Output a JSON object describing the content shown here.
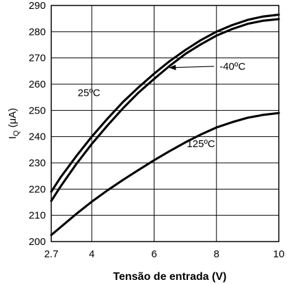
{
  "chart_data": {
    "type": "line",
    "xlabel": "Tensão de entrada (V)",
    "ylabel": {
      "main": "I",
      "sub": "Q",
      "unit": " (μA)"
    },
    "xlim": [
      2.7,
      10
    ],
    "ylim": [
      200,
      290
    ],
    "x_ticks": [
      2.7,
      4,
      6,
      8,
      10
    ],
    "x_tick_labels": [
      "2.7",
      "4",
      "6",
      "8",
      "10"
    ],
    "y_ticks": [
      200,
      210,
      220,
      230,
      240,
      250,
      260,
      270,
      280,
      290
    ],
    "y_tick_labels": [
      "200",
      "210",
      "220",
      "230",
      "240",
      "250",
      "260",
      "270",
      "280",
      "290"
    ],
    "grid": true,
    "series": [
      {
        "name": "25ºC",
        "x": [
          2.7,
          3.0,
          3.5,
          4.0,
          4.5,
          5.0,
          5.5,
          6.0,
          6.5,
          7.0,
          7.5,
          8.0,
          8.5,
          9.0,
          9.5,
          10.0
        ],
        "y": [
          219.0,
          224.5,
          232.5,
          240.0,
          246.8,
          253.2,
          258.8,
          264.0,
          268.8,
          273.0,
          276.8,
          280.0,
          282.5,
          284.5,
          285.8,
          286.5
        ]
      },
      {
        "name": "-40ºC",
        "x": [
          2.7,
          3.0,
          3.5,
          4.0,
          4.5,
          5.0,
          5.5,
          6.0,
          6.5,
          7.0,
          7.5,
          8.0,
          8.5,
          9.0,
          9.5,
          10.0
        ],
        "y": [
          215.5,
          221.0,
          229.5,
          237.2,
          244.2,
          250.8,
          256.8,
          262.0,
          267.0,
          271.5,
          275.2,
          278.5,
          281.0,
          283.0,
          284.2,
          284.8
        ]
      },
      {
        "name": "125ºC",
        "x": [
          2.7,
          3.0,
          3.5,
          4.0,
          4.5,
          5.0,
          5.5,
          6.0,
          6.5,
          7.0,
          7.5,
          8.0,
          8.5,
          9.0,
          9.5,
          10.0
        ],
        "y": [
          202.5,
          205.5,
          210.5,
          215.2,
          219.5,
          223.5,
          227.3,
          231.0,
          234.5,
          237.8,
          240.8,
          243.5,
          245.5,
          247.2,
          248.3,
          249.0
        ]
      }
    ],
    "annotations": [
      {
        "text": "25ºC",
        "x": 3.55,
        "y": 255.5
      },
      {
        "text": "-40ºC",
        "x": 8.1,
        "y": 265.5,
        "arrow_to": {
          "x": 6.5,
          "y": 266.3
        }
      },
      {
        "text": "125ºC",
        "x": 7.05,
        "y": 236
      }
    ]
  }
}
